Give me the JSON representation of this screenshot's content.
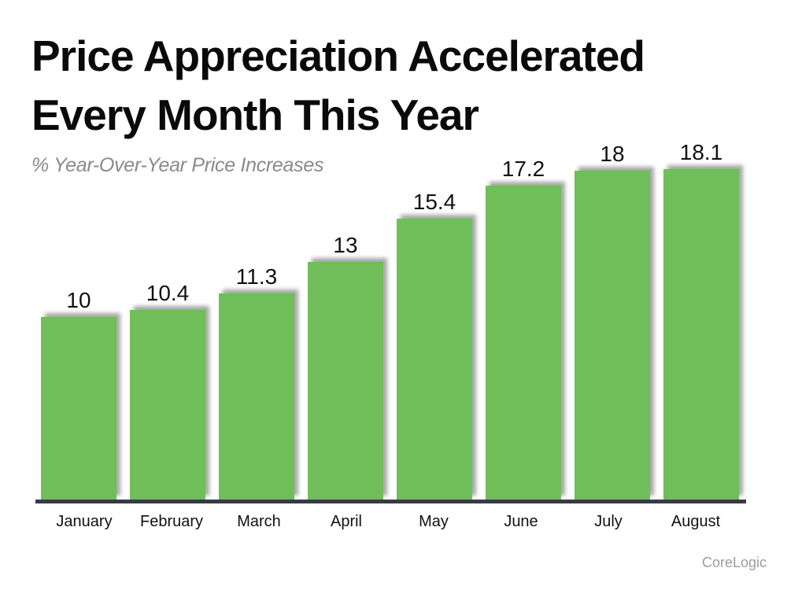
{
  "header": {
    "title_line1": "Price Appreciation Accelerated",
    "title_line2": "Every Month This Year",
    "subtitle": "% Year-Over-Year Price Increases"
  },
  "chart_data": {
    "type": "bar",
    "title": "Price Appreciation Accelerated Every Month This Year",
    "subtitle": "% Year-Over-Year Price Increases",
    "categories": [
      "January",
      "February",
      "March",
      "April",
      "May",
      "June",
      "July",
      "August"
    ],
    "values": [
      10,
      10.4,
      11.3,
      13,
      15.4,
      17.2,
      18,
      18.1
    ],
    "value_labels": [
      "10",
      "10.4",
      "11.3",
      "13",
      "15.4",
      "17.2",
      "18",
      "18.1"
    ],
    "xlabel": "",
    "ylabel": "",
    "ylim": [
      0,
      19
    ],
    "grid": false,
    "legend": false,
    "bar_color": "#6FBE59",
    "axis_line_color": "#363C44",
    "label_color": "#111111"
  },
  "footer": {
    "attribution": "CoreLogic"
  }
}
